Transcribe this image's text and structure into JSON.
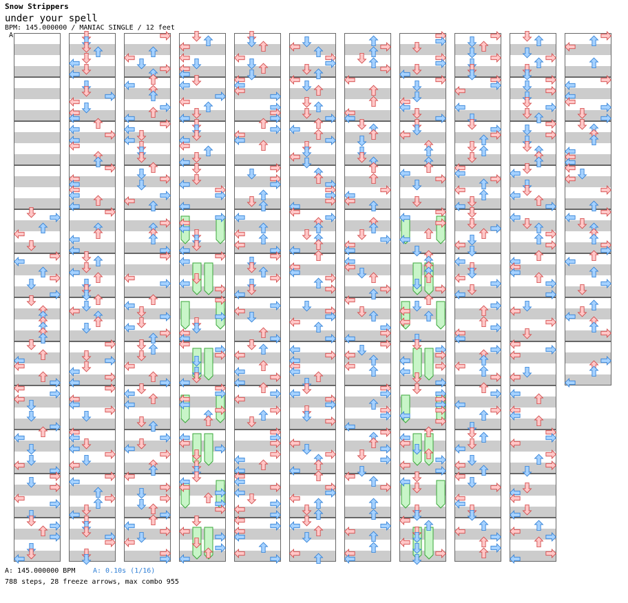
{
  "song": {
    "title": "Snow Strippers",
    "subtitle": "under your spell",
    "chart_info": "BPM: 145.000000 / MANIAC SINGLE / 12 feet",
    "section_marker": "A"
  },
  "footer": {
    "bpm_line": "A: 145.000000 BPM",
    "stop_line": "A: 0.10s (1/16)",
    "summary": "788 steps, 28 freeze arrows, max combo 955"
  },
  "chart_data": {
    "type": "other",
    "style": "dance step chart",
    "columns_shown": 11,
    "measures_per_column": 12,
    "lanes": [
      "left",
      "down",
      "up",
      "right"
    ],
    "total_steps": 788,
    "freeze_arrows": 28,
    "max_combo": 955,
    "bpm": 145.0
  },
  "colors": {
    "page_bg": "#ffffff",
    "beat_stripe": "#cccccc",
    "measure_border": "#666666",
    "red_arrow_fill": "#ffc8c8",
    "red_arrow_stroke": "#d24646",
    "blue_arrow_fill": "#a6d2ff",
    "blue_arrow_stroke": "#2f7fd6",
    "freeze_fill": "#c8f5c8",
    "freeze_stroke": "#3aa63a",
    "stop_text": "#2f7fd6"
  }
}
